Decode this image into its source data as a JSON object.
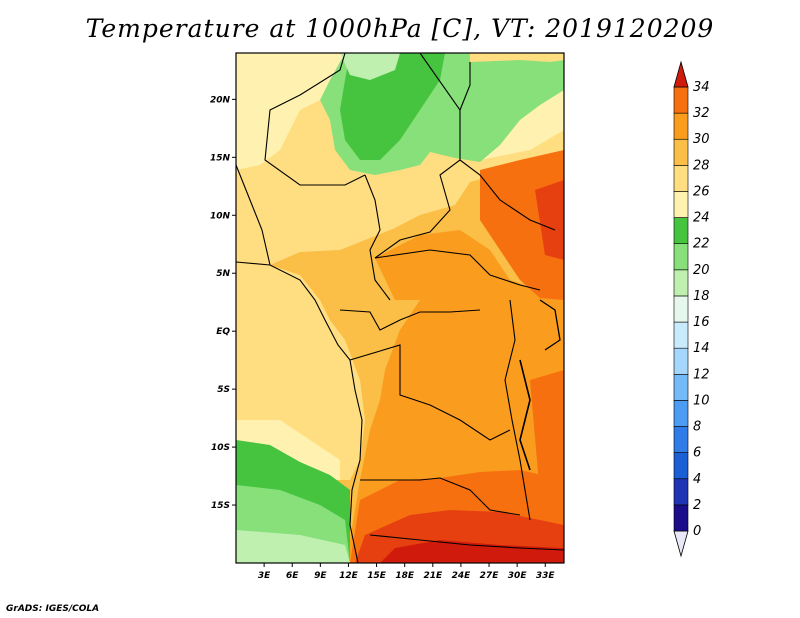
{
  "title": "Temperature at 1000hPa [C], VT: 2019120209",
  "footer": "GrADS: IGES/COLA",
  "map": {
    "projection": "lat-lon",
    "lon_range": [
      0,
      35
    ],
    "lat_range": [
      -20,
      24
    ],
    "lat_labels": [
      "20N",
      "15N",
      "10N",
      "5N",
      "EQ",
      "5S",
      "10S",
      "15S"
    ],
    "lat_values": [
      20,
      15,
      10,
      5,
      0,
      -5,
      -10,
      -15
    ],
    "lon_labels": [
      "3E",
      "6E",
      "9E",
      "12E",
      "15E",
      "18E",
      "21E",
      "24E",
      "27E",
      "30E",
      "33E"
    ],
    "lon_values": [
      3,
      6,
      9,
      12,
      15,
      18,
      21,
      24,
      27,
      30,
      33
    ]
  },
  "colorbar": {
    "labels": [
      "0",
      "2",
      "4",
      "6",
      "8",
      "10",
      "12",
      "14",
      "16",
      "18",
      "20",
      "22",
      "24",
      "26",
      "28",
      "30",
      "32",
      "34"
    ],
    "colors": [
      "#1a0c8a",
      "#1f34b4",
      "#1b5fd6",
      "#2f7ce8",
      "#4b9cf2",
      "#75baf8",
      "#a5d6fb",
      "#c9ecfc",
      "#e6f8ee",
      "#bff0b0",
      "#88e07a",
      "#46c440",
      "#fff2b0",
      "#ffde82",
      "#fbbe46",
      "#fa9c1e",
      "#f7700f",
      "#e74010",
      "#d01a0c"
    ]
  }
}
